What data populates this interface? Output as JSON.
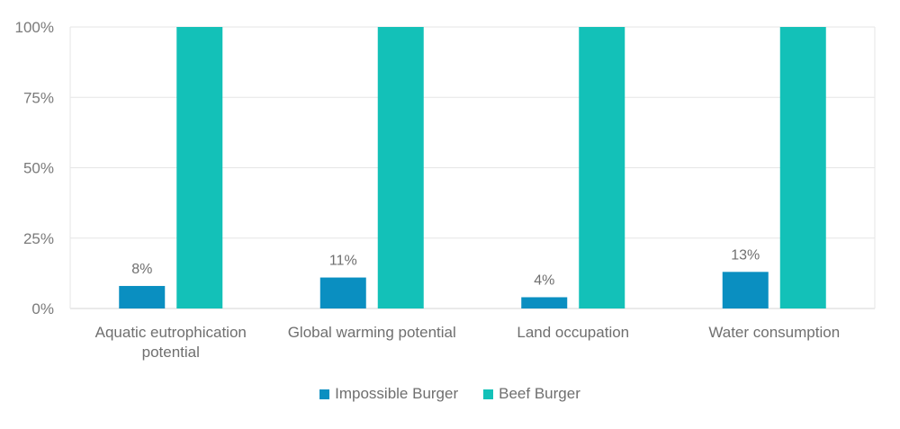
{
  "chart_data": {
    "type": "bar",
    "categories": [
      [
        "Aquatic eutrophication",
        "potential"
      ],
      [
        "Global warming potential"
      ],
      [
        "Land occupation"
      ],
      [
        "Water consumption"
      ]
    ],
    "series": [
      {
        "name": "Impossible Burger",
        "color": "#0a8fc1",
        "values": [
          8,
          11,
          4,
          13
        ],
        "labels": [
          "8%",
          "11%",
          "4%",
          "13%"
        ]
      },
      {
        "name": "Beef Burger",
        "color": "#13c1b8",
        "values": [
          100,
          100,
          100,
          100
        ]
      }
    ],
    "yticks": [
      "0%",
      "25%",
      "50%",
      "75%",
      "100%"
    ],
    "ylim": [
      0,
      100
    ],
    "grid": true,
    "legend_position": "bottom"
  }
}
